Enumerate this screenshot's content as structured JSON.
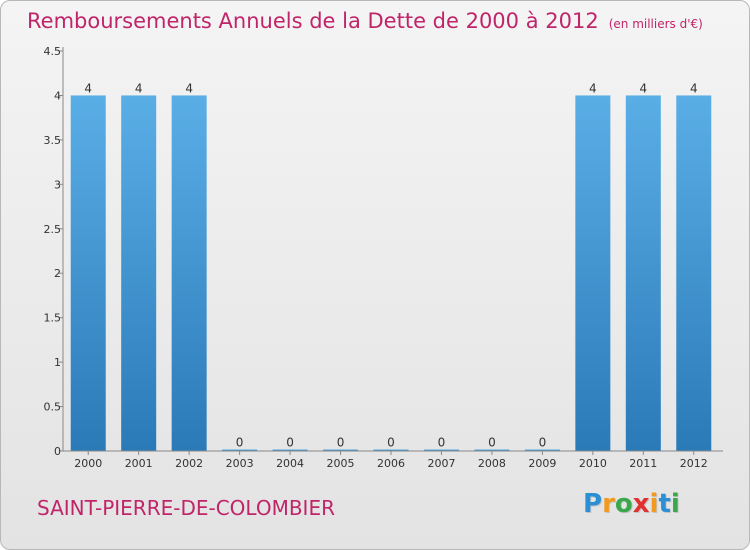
{
  "page": {
    "title": "Remboursements Annuels de la Dette de 2000 à 2012",
    "unit": "(en milliers d'€)",
    "commune": "SAINT-PIERRE-DE-COLOMBIER",
    "brand": "Proxiti"
  },
  "chart_data": {
    "type": "bar",
    "title": "Remboursements Annuels de la Dette de 2000 à 2012",
    "xlabel": "",
    "ylabel": "",
    "categories": [
      "2000",
      "2001",
      "2002",
      "2003",
      "2004",
      "2005",
      "2006",
      "2007",
      "2008",
      "2009",
      "2010",
      "2011",
      "2012"
    ],
    "values": [
      4,
      4,
      4,
      0,
      0,
      0,
      0,
      0,
      0,
      0,
      4,
      4,
      4
    ],
    "data_labels": [
      "4",
      "4",
      "4",
      "0",
      "0",
      "0",
      "0",
      "0",
      "0",
      "0",
      "4",
      "4",
      "4"
    ],
    "ylim": [
      0,
      4.5
    ],
    "yticks": [
      0,
      0.5,
      1,
      1.5,
      2,
      2.5,
      3,
      3.5,
      4,
      4.5
    ],
    "ytick_labels": [
      "0",
      "0.5",
      "1",
      "1.5",
      "2",
      "2.5",
      "3",
      "3.5",
      "4",
      "4.5"
    ],
    "grid": false,
    "colors": {
      "bar_top": "#5aaee6",
      "bar_bottom": "#2a7ab8",
      "axis": "#888888",
      "text": "#333333"
    }
  }
}
